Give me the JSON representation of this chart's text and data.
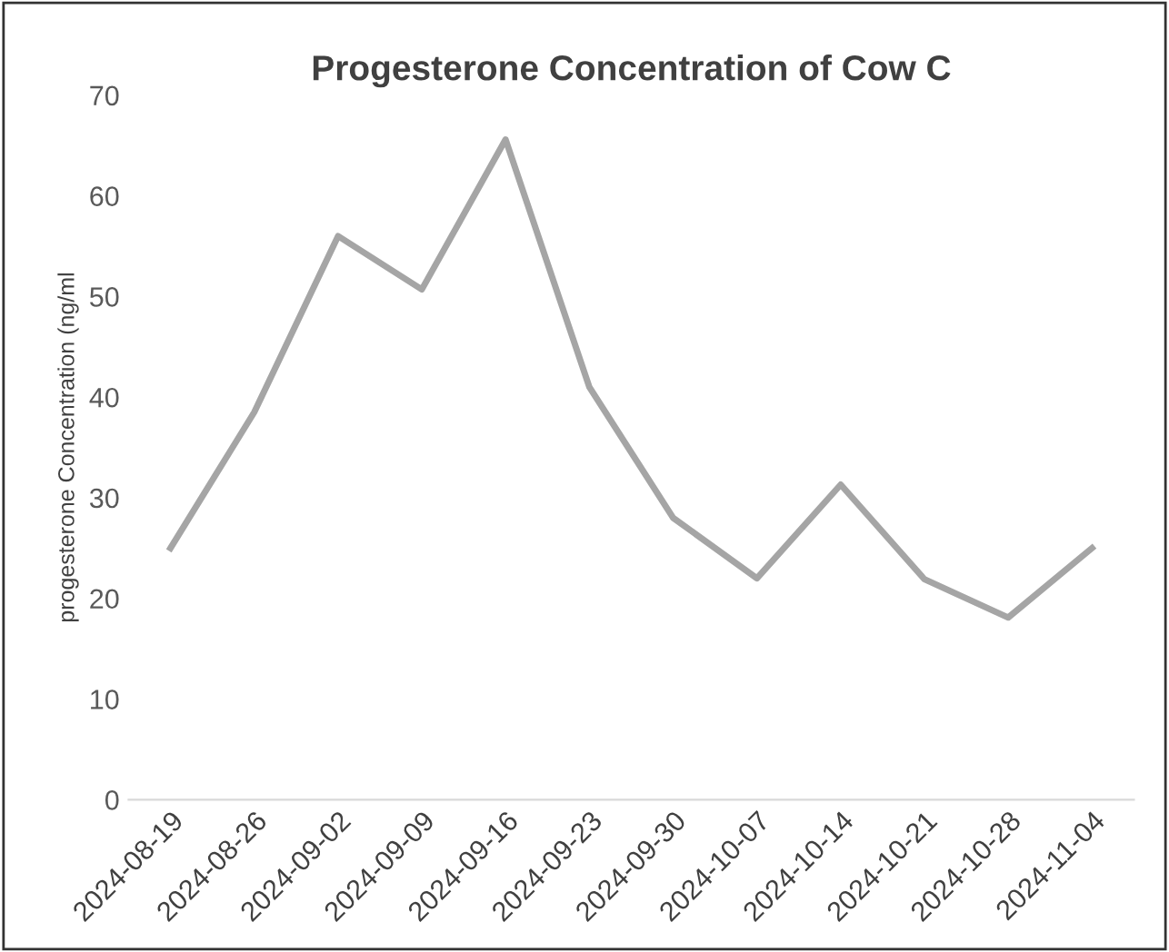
{
  "chart_data": {
    "type": "line",
    "title": "Progesterone Concentration of Cow C",
    "ylabel": "progesterone Concentration (ng/ml",
    "categories": [
      "2024-08-19",
      "2024-08-26",
      "2024-09-02",
      "2024-09-09",
      "2024-09-16",
      "2024-09-23",
      "2024-09-30",
      "2024-10-07",
      "2024-10-14",
      "2024-10-21",
      "2024-10-28",
      "2024-11-04"
    ],
    "series": [
      {
        "color": "#a5a5a5",
        "values": [
          25,
          38.5,
          56,
          50.7,
          65.6,
          41,
          28,
          22,
          31.3,
          21.9,
          18.1,
          25
        ]
      }
    ],
    "ylim": [
      0,
      70
    ],
    "yticks": [
      0,
      10,
      20,
      30,
      40,
      50,
      60,
      70
    ],
    "grid": false,
    "legend": false,
    "marker": "none",
    "line_style": "solid"
  }
}
